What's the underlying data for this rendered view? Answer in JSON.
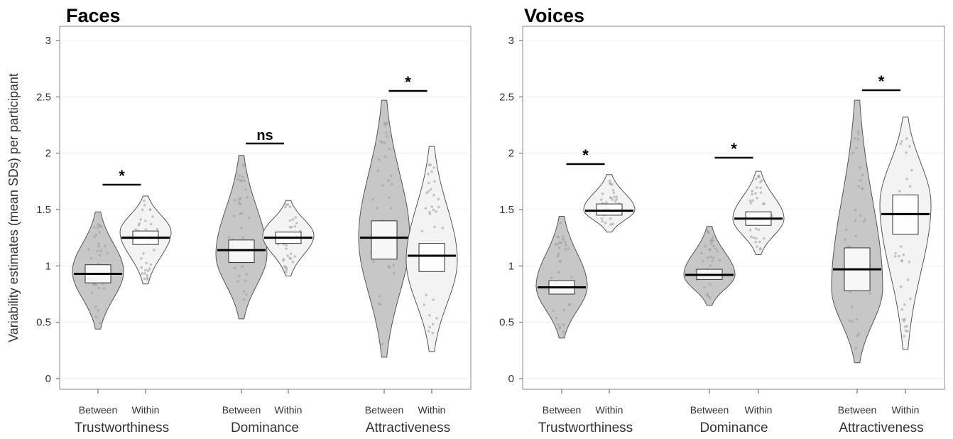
{
  "chart_data": [
    {
      "type": "violin",
      "title": "Faces",
      "ylabel": "Variability estimates (mean SDs) per participant",
      "ylim": [
        0,
        3
      ],
      "yticks": [
        "0",
        "0.5",
        "1",
        "1.5",
        "2",
        "2.5",
        "3"
      ],
      "grid": true,
      "groups": [
        {
          "label": "Trustworthiness",
          "significance": "*",
          "conditions": [
            {
              "name": "Between",
              "min": 0.44,
              "max": 1.48,
              "mode": 0.95,
              "median": 0.93,
              "q1": 0.85,
              "q3": 1.01
            },
            {
              "name": "Within",
              "min": 0.84,
              "max": 1.62,
              "mode": 1.3,
              "median": 1.25,
              "q1": 1.19,
              "q3": 1.31
            }
          ]
        },
        {
          "label": "Dominance",
          "significance": "ns",
          "conditions": [
            {
              "name": "Between",
              "min": 0.53,
              "max": 1.98,
              "mode": 1.1,
              "median": 1.14,
              "q1": 1.03,
              "q3": 1.23
            },
            {
              "name": "Within",
              "min": 0.91,
              "max": 1.58,
              "mode": 1.27,
              "median": 1.25,
              "q1": 1.2,
              "q3": 1.3
            }
          ]
        },
        {
          "label": "Attractiveness",
          "significance": "*",
          "conditions": [
            {
              "name": "Between",
              "min": 0.19,
              "max": 2.47,
              "mode": 1.25,
              "median": 1.25,
              "q1": 1.06,
              "q3": 1.4
            },
            {
              "name": "Within",
              "min": 0.24,
              "max": 2.06,
              "mode": 1.05,
              "median": 1.09,
              "q1": 0.95,
              "q3": 1.2
            }
          ]
        }
      ]
    },
    {
      "type": "violin",
      "title": "Voices",
      "ylabel": "",
      "ylim": [
        0,
        3
      ],
      "yticks": [
        "0",
        "0.5",
        "1",
        "1.5",
        "2",
        "2.5",
        "3"
      ],
      "grid": true,
      "groups": [
        {
          "label": "Trustworthiness",
          "significance": "*",
          "conditions": [
            {
              "name": "Between",
              "min": 0.36,
              "max": 1.44,
              "mode": 0.82,
              "median": 0.81,
              "q1": 0.75,
              "q3": 0.87
            },
            {
              "name": "Within",
              "min": 1.3,
              "max": 1.81,
              "mode": 1.5,
              "median": 1.49,
              "q1": 1.45,
              "q3": 1.55
            }
          ]
        },
        {
          "label": "Dominance",
          "significance": "*",
          "conditions": [
            {
              "name": "Between",
              "min": 0.65,
              "max": 1.35,
              "mode": 0.92,
              "median": 0.92,
              "q1": 0.88,
              "q3": 0.97
            },
            {
              "name": "Within",
              "min": 1.1,
              "max": 1.84,
              "mode": 1.42,
              "median": 1.42,
              "q1": 1.36,
              "q3": 1.48
            }
          ]
        },
        {
          "label": "Attractiveness",
          "significance": "*",
          "conditions": [
            {
              "name": "Between",
              "min": 0.14,
              "max": 2.47,
              "mode": 0.8,
              "median": 0.97,
              "q1": 0.78,
              "q3": 1.16
            },
            {
              "name": "Within",
              "min": 0.26,
              "max": 2.32,
              "mode": 1.55,
              "median": 1.46,
              "q1": 1.28,
              "q3": 1.63
            }
          ]
        }
      ]
    }
  ]
}
